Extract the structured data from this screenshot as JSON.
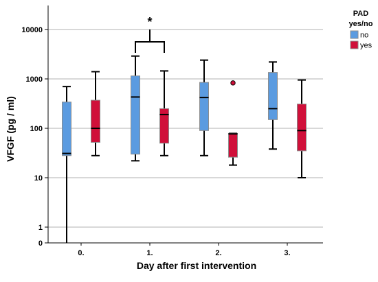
{
  "chart_data": {
    "type": "boxplot",
    "xlabel": "Day after first intervention",
    "ylabel": "VFGF (pg / ml)",
    "categories": [
      "0.",
      "1.",
      "2.",
      "3."
    ],
    "y_scale": "log",
    "y_ticks": [
      {
        "value": 0,
        "label": "0"
      },
      {
        "value": 1,
        "label": "1"
      },
      {
        "value": 10,
        "label": "10"
      },
      {
        "value": 100,
        "label": "100"
      },
      {
        "value": 1000,
        "label": "1000"
      },
      {
        "value": 10000,
        "label": "10000"
      }
    ],
    "y_range": [
      0,
      30000
    ],
    "grid": "horizontal",
    "legend": {
      "title_line1": "PAD",
      "title_line2": "yes/no",
      "placement": "top-right",
      "entries": [
        {
          "label": "no",
          "color": "#5B9BE0"
        },
        {
          "label": "yes",
          "color": "#D0103A"
        }
      ]
    },
    "series": [
      {
        "name": "no",
        "color": "#5B9BE0",
        "boxes": [
          {
            "category": "0.",
            "whisker_low": 0,
            "q1": 28,
            "median": 31,
            "q3": 340,
            "whisker_high": 700,
            "outliers": []
          },
          {
            "category": "1.",
            "whisker_low": 22,
            "q1": 30,
            "median": 430,
            "q3": 1150,
            "whisker_high": 2900,
            "outliers": []
          },
          {
            "category": "2.",
            "whisker_low": 28,
            "q1": 90,
            "median": 420,
            "q3": 850,
            "whisker_high": 2400,
            "outliers": []
          },
          {
            "category": "3.",
            "whisker_low": 38,
            "q1": 150,
            "median": 250,
            "q3": 1350,
            "whisker_high": 2200,
            "outliers": []
          }
        ]
      },
      {
        "name": "yes",
        "color": "#D0103A",
        "boxes": [
          {
            "category": "0.",
            "whisker_low": 28,
            "q1": 52,
            "median": 100,
            "q3": 370,
            "whisker_high": 1400,
            "outliers": []
          },
          {
            "category": "1.",
            "whisker_low": 28,
            "q1": 50,
            "median": 190,
            "q3": 250,
            "whisker_high": 1450,
            "outliers": []
          },
          {
            "category": "2.",
            "whisker_low": 18,
            "q1": 26,
            "median": 77,
            "q3": 79,
            "whisker_high": 79,
            "outliers": [
              830
            ]
          },
          {
            "category": "3.",
            "whisker_low": 10,
            "q1": 35,
            "median": 90,
            "q3": 310,
            "whisker_high": 950,
            "outliers": []
          }
        ]
      }
    ],
    "annotations": [
      {
        "text": "*",
        "category": "1."
      }
    ]
  }
}
